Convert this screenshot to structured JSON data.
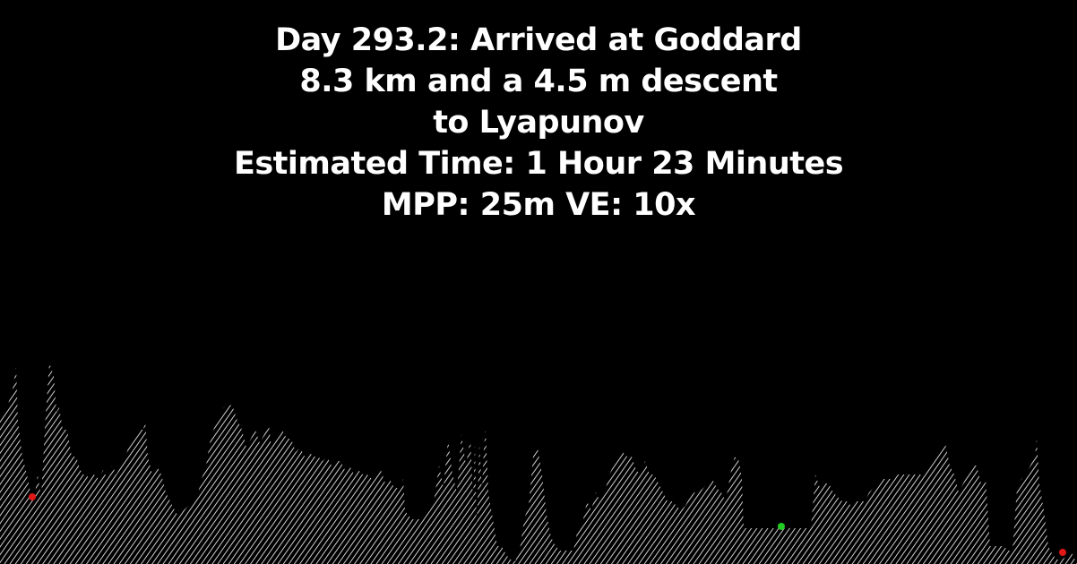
{
  "header": {
    "line1": "Day 293.2: Arrived at Goddard",
    "line2": "8.3 km and a 4.5 m descent",
    "line3": "to Lyapunov",
    "line4": "Estimated Time: 1 Hour 23 Minutes",
    "line5": "MPP: 25m VE: 10x"
  },
  "colors": {
    "background": "#000000",
    "text": "#ffffff",
    "terrain_hatch": "#ffffff",
    "marker_start": "#e01818",
    "marker_current": "#22cc22",
    "marker_end": "#e01818"
  },
  "chart_data": {
    "type": "area",
    "style": "hatched elevation profile",
    "title": "",
    "xlabel": "",
    "ylabel": "",
    "axes_visible": false,
    "grid": false,
    "xlim": [
      0,
      1202
    ],
    "ylim": [
      0,
      230
    ],
    "series": [
      {
        "x": [
          0,
          8,
          14,
          18,
          20,
          25,
          30,
          35,
          38,
          42,
          46,
          50,
          55,
          60,
          63,
          66,
          70,
          75,
          80,
          85,
          88,
          92,
          96,
          100,
          105,
          110,
          115,
          120,
          125,
          130,
          135,
          140,
          145,
          150,
          155,
          160,
          162,
          165,
          170,
          175,
          180,
          185,
          190,
          195,
          198,
          200,
          205,
          210,
          215,
          220,
          225,
          230,
          235,
          240,
          245,
          250,
          255,
          260,
          265,
          270,
          275,
          280,
          285,
          290,
          295,
          300,
          303,
          305,
          310,
          315,
          320,
          325,
          330,
          335,
          340,
          345,
          350,
          355,
          360,
          365,
          370,
          375,
          380,
          385,
          390,
          395,
          400,
          405,
          410,
          415,
          420,
          425,
          430,
          435,
          440,
          445,
          450,
          452,
          455,
          460,
          465,
          470,
          475,
          480,
          485,
          490,
          495,
          500,
          505,
          510,
          515,
          520,
          525,
          528,
          530,
          532,
          535,
          538,
          540,
          542,
          545,
          550,
          555,
          560,
          565,
          570,
          575,
          580,
          585,
          590,
          595,
          600,
          605,
          610,
          615,
          620,
          625,
          630,
          635,
          640,
          645,
          650,
          655,
          660,
          665,
          670,
          675,
          680,
          685,
          690,
          695,
          700,
          705,
          710,
          715,
          720,
          725,
          730,
          735,
          740,
          745,
          750,
          755,
          760,
          765,
          770,
          775,
          780,
          785,
          790,
          795,
          800,
          805,
          810,
          815,
          820,
          825,
          828,
          830,
          835,
          840,
          845,
          850,
          855,
          860,
          865,
          870,
          875,
          880,
          885,
          890,
          895,
          900,
          905,
          908,
          910,
          915,
          920,
          925,
          930,
          935,
          940,
          945,
          950,
          955,
          960,
          965,
          970,
          975,
          980,
          985,
          990,
          995,
          1000,
          1005,
          1010,
          1015,
          1020,
          1025,
          1030,
          1035,
          1040,
          1045,
          1050,
          1055,
          1060,
          1065,
          1070,
          1075,
          1080,
          1085,
          1090,
          1095,
          1100,
          1105,
          1110,
          1115,
          1120,
          1125,
          1130,
          1135,
          1140,
          1145,
          1150,
          1155,
          1157,
          1160,
          1165,
          1170,
          1175,
          1180,
          1185,
          1190,
          1195,
          1202
        ],
        "y": [
          160,
          175,
          195,
          220,
          160,
          120,
          100,
          75,
          70,
          100,
          75,
          150,
          225,
          210,
          170,
          175,
          150,
          150,
          120,
          120,
          110,
          100,
          100,
          95,
          100,
          95,
          105,
          95,
          110,
          100,
          110,
          120,
          135,
          140,
          150,
          150,
          160,
          120,
          100,
          110,
          100,
          80,
          70,
          60,
          55,
          60,
          60,
          65,
          70,
          75,
          95,
          110,
          140,
          155,
          165,
          175,
          180,
          175,
          160,
          150,
          130,
          140,
          150,
          135,
          145,
          155,
          130,
          140,
          145,
          150,
          140,
          140,
          125,
          130,
          120,
          125,
          120,
          120,
          115,
          120,
          110,
          115,
          115,
          105,
          110,
          100,
          105,
          100,
          100,
          95,
          100,
          105,
          90,
          95,
          85,
          85,
          95,
          60,
          55,
          50,
          50,
          50,
          55,
          60,
          75,
          110,
          85,
          140,
          100,
          80,
          145,
          110,
          140,
          70,
          135,
          40,
          135,
          80,
          130,
          150,
          80,
          50,
          20,
          20,
          10,
          5,
          3,
          15,
          50,
          65,
          120,
          130,
          100,
          55,
          30,
          20,
          15,
          15,
          15,
          15,
          40,
          45,
          70,
          60,
          80,
          70,
          80,
          100,
          110,
          120,
          125,
          120,
          120,
          105,
          100,
          115,
          100,
          100,
          90,
          80,
          70,
          70,
          65,
          60,
          65,
          75,
          80,
          80,
          85,
          90,
          95,
          85,
          80,
          70,
          100,
          120,
          115,
          95,
          40,
          40,
          40,
          40,
          40,
          40,
          40,
          40,
          40,
          40,
          40,
          40,
          40,
          40,
          40,
          40,
          75,
          100,
          85,
          90,
          90,
          80,
          75,
          70,
          70,
          65,
          70,
          70,
          70,
          80,
          85,
          90,
          95,
          95,
          95,
          100,
          100,
          100,
          100,
          100,
          100,
          100,
          110,
          115,
          120,
          125,
          135,
          110,
          100,
          80,
          90,
          100,
          110,
          110,
          90,
          95,
          20,
          20,
          20,
          20,
          15,
          15,
          85,
          95,
          100,
          110,
          120,
          140,
          90,
          60,
          20,
          10,
          5,
          5,
          8,
          15,
          0
        ],
        "markers": [
          {
            "name": "start",
            "x": 36,
            "y": 75,
            "color": "#e01818"
          },
          {
            "name": "current",
            "x": 872,
            "y": 42,
            "color": "#22cc22"
          },
          {
            "name": "end",
            "x": 1186,
            "y": 13,
            "color": "#e01818"
          }
        ]
      }
    ]
  }
}
